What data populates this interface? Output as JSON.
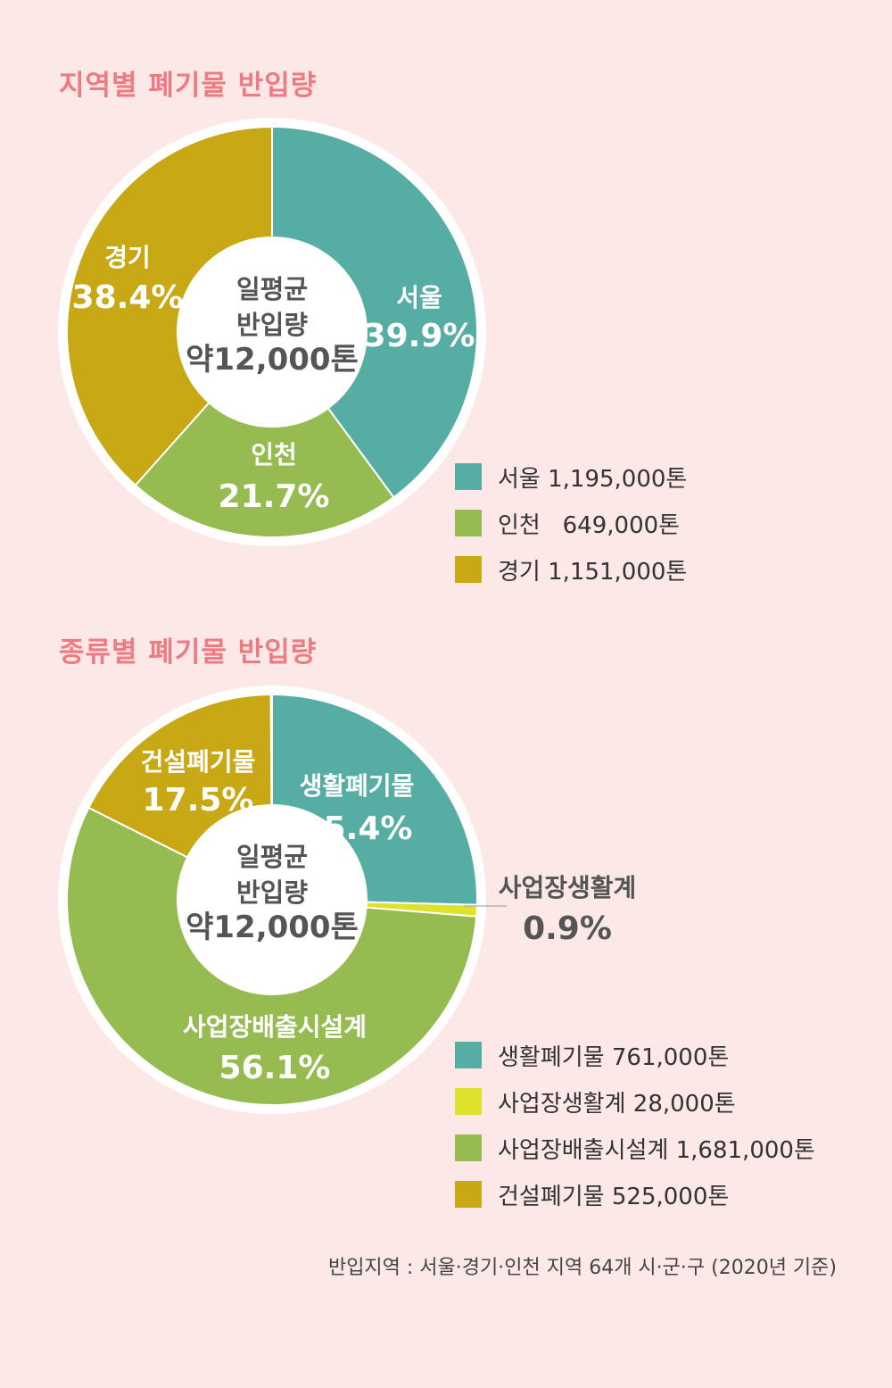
{
  "colors": {
    "background": "#fde8e8",
    "title": "#ee7a82",
    "teal": "#55ada3",
    "green": "#96bb51",
    "gold": "#c8a814",
    "yellow": "#dfe22a"
  },
  "center_label": [
    "일평균",
    "반입량",
    "약12,000톤"
  ],
  "chart_data": [
    {
      "type": "pie",
      "title": "지역별 폐기물 반입량",
      "slices": [
        {
          "name": "서울",
          "percent": 39.9,
          "percent_label": "39.9%",
          "legend": "서울 1,195,000톤",
          "color": "#55ada3"
        },
        {
          "name": "인천",
          "percent": 21.7,
          "percent_label": "21.7%",
          "legend": "인천   649,000톤",
          "color": "#96bb51"
        },
        {
          "name": "경기",
          "percent": 38.4,
          "percent_label": "38.4%",
          "legend": "경기 1,151,000톤",
          "color": "#c8a814"
        }
      ]
    },
    {
      "type": "pie",
      "title": "종류별 폐기물 반입량",
      "slices": [
        {
          "name": "생활폐기물",
          "percent": 25.4,
          "percent_label": "25.4%",
          "legend": "생활폐기물 761,000톤",
          "color": "#55ada3"
        },
        {
          "name": "사업장생활계",
          "percent": 0.9,
          "percent_label": "0.9%",
          "legend": "사업장생활계 28,000톤",
          "color": "#dfe22a"
        },
        {
          "name": "사업장배출시설계",
          "percent": 56.1,
          "percent_label": "56.1%",
          "legend": "사업장배출시설계 1,681,000톤",
          "color": "#96bb51"
        },
        {
          "name": "건설폐기물",
          "percent": 17.5,
          "percent_label": "17.5%",
          "legend": "건설폐기물 525,000톤",
          "color": "#c8a814"
        }
      ]
    }
  ],
  "footnote": "반입지역 : 서울·경기·인천 지역 64개 시·군·구 (2020년 기준)"
}
